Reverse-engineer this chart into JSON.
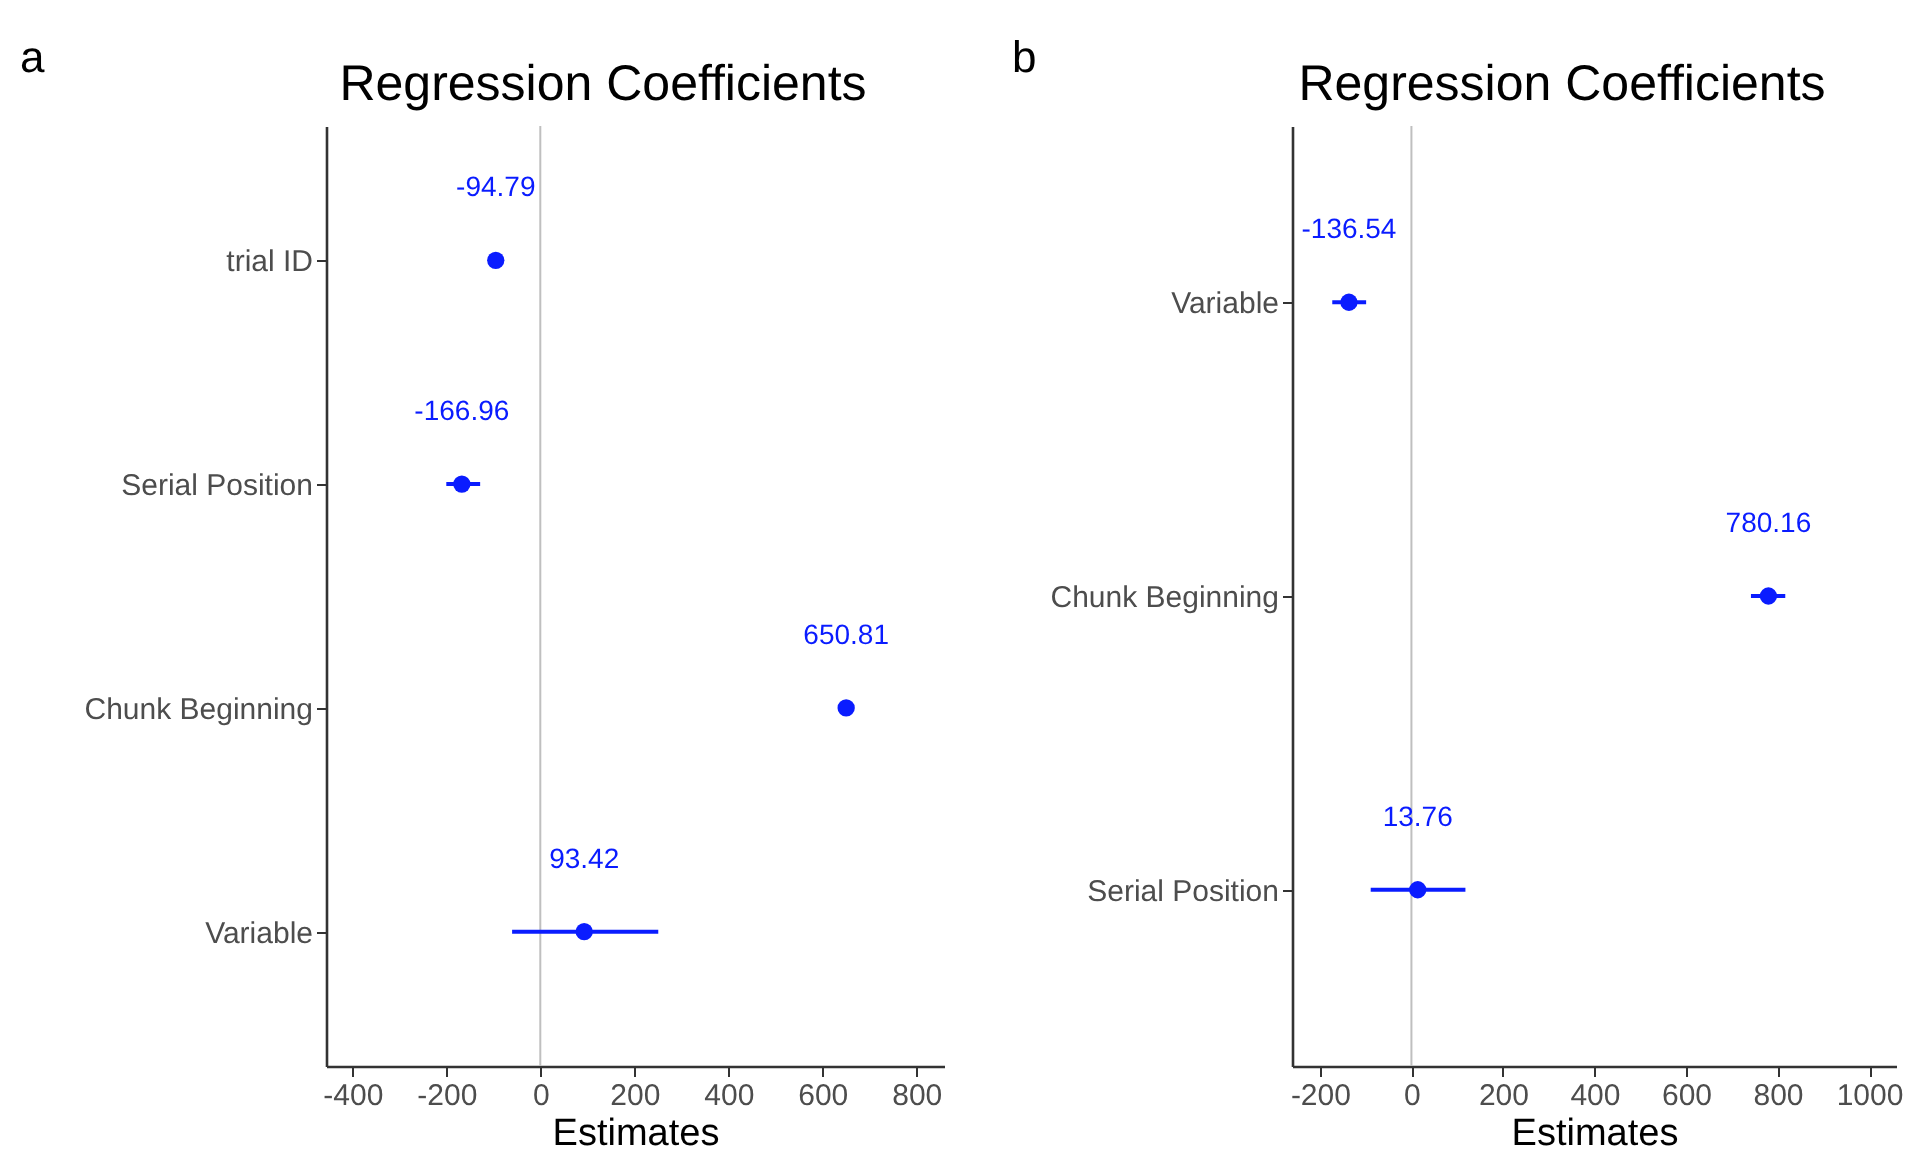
{
  "chart_data": [
    {
      "type": "scatter",
      "orientation": "horizontal",
      "title": "Regression Coefficients",
      "xlabel": "Estimates",
      "annotations": [
        "a"
      ],
      "categories": [
        "trial ID",
        "Serial Position",
        "Chunk Beginning",
        "Variable"
      ],
      "series": [
        {
          "color": "#0a1cff",
          "values": [
            -94.79,
            -166.96,
            650.81,
            93.42
          ],
          "errors": [
            null,
            [
              -200,
              -128
            ],
            null,
            [
              -60,
              251
            ]
          ]
        }
      ],
      "data_labels": true,
      "marker": "circle",
      "grid": false,
      "legend": false,
      "xlim": [
        -456,
        859
      ],
      "xticks": [
        -400,
        -200,
        0,
        200,
        400,
        600,
        800
      ],
      "ref_lines": [
        {
          "axis": "x",
          "value": 0,
          "color": "#bfbfbf"
        }
      ]
    },
    {
      "type": "scatter",
      "orientation": "horizontal",
      "title": "Regression Coefficients",
      "xlabel": "Estimates",
      "annotations": [
        "b"
      ],
      "categories": [
        "Variable",
        "Chunk Beginning",
        "Serial Position"
      ],
      "series": [
        {
          "color": "#0a1cff",
          "values": [
            -136.54,
            780.16,
            13.76
          ],
          "errors": [
            [
              -173,
              -99
            ],
            [
              742,
              817
            ],
            [
              -89,
              118
            ]
          ]
        }
      ],
      "data_labels": true,
      "marker": "circle",
      "grid": false,
      "legend": false,
      "xlim": [
        -261,
        1059
      ],
      "xticks": [
        -200,
        0,
        200,
        400,
        600,
        800,
        1000
      ],
      "ref_lines": [
        {
          "axis": "x",
          "value": 0,
          "color": "#bfbfbf"
        }
      ]
    }
  ]
}
